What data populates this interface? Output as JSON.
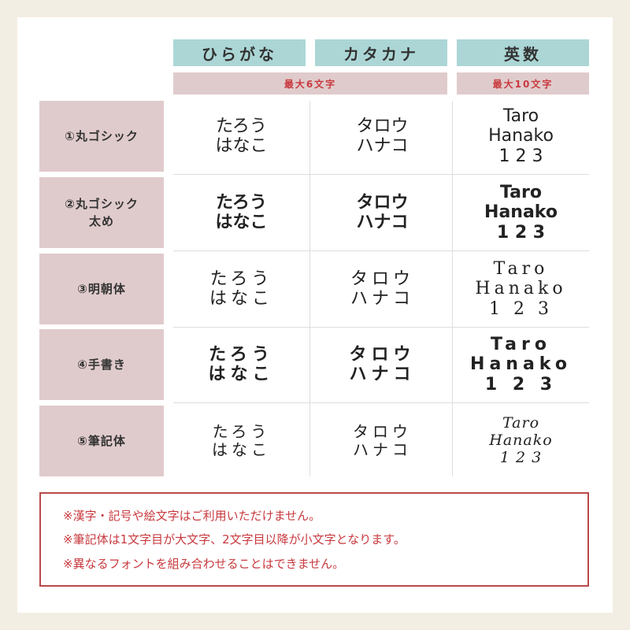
{
  "headers": {
    "hiragana": "ひらがな",
    "katakana": "カタカナ",
    "alnum": "英数"
  },
  "limits": {
    "kana": "最大6文字",
    "alnum": "最大10文字"
  },
  "rows": [
    {
      "label": "①丸ゴシック",
      "hira": [
        "たろう",
        "はなこ"
      ],
      "kata": [
        "タロウ",
        "ハナコ"
      ],
      "alpha": [
        "Taro",
        "Hanako",
        "1 2 3"
      ]
    },
    {
      "label": "②丸ゴシック\n太め",
      "hira": [
        "たろう",
        "はなこ"
      ],
      "kata": [
        "タロウ",
        "ハナコ"
      ],
      "alpha": [
        "Taro",
        "Hanako",
        "1 2 3"
      ]
    },
    {
      "label": "③明朝体",
      "hira": [
        "たろう",
        "はなこ"
      ],
      "kata": [
        "タロウ",
        "ハナコ"
      ],
      "alpha": [
        "Taro",
        "Hanako",
        "1 2 3"
      ]
    },
    {
      "label": "④手書き",
      "hira": [
        "たろう",
        "はなこ"
      ],
      "kata": [
        "タロウ",
        "ハナコ"
      ],
      "alpha": [
        "Taro",
        "Hanako",
        "1 2 3"
      ]
    },
    {
      "label": "⑤筆記体",
      "hira": [
        "たろう",
        "はなこ"
      ],
      "kata": [
        "タロウ",
        "ハナコ"
      ],
      "alpha": [
        "Taro",
        "Hanako",
        "1 2 3"
      ]
    }
  ],
  "notes": [
    "※漢字・記号や絵文字はご利用いただけません。",
    "※筆記体は1文字目が大文字、2文字目以降が小文字となります。",
    "※異なるフォントを組み合わせることはできません。"
  ],
  "colors": {
    "header": "#acd6d6",
    "label_bg": "#e0cbcc",
    "accent": "#c8393e"
  }
}
